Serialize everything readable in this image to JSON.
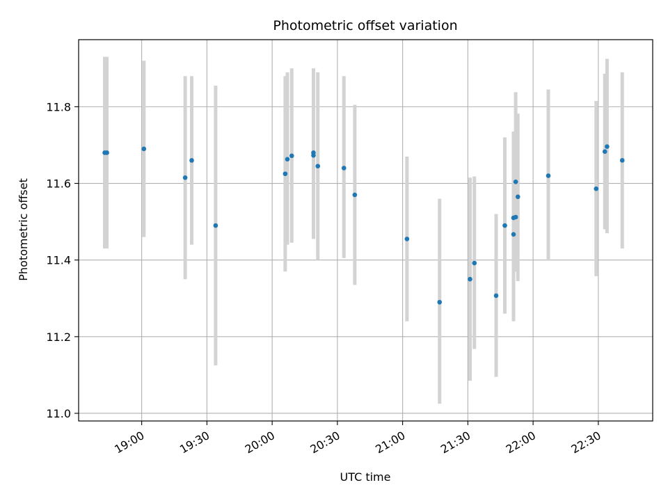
{
  "chart_data": {
    "type": "scatter",
    "title": "Photometric offset variation",
    "xlabel": "UTC time",
    "ylabel": "Photometric offset",
    "x_unit": "UTC time (HH:MM)",
    "xlim": [
      "18:31",
      "22:55"
    ],
    "ylim": [
      10.98,
      11.975
    ],
    "x_ticks": [
      "19:00",
      "19:30",
      "20:00",
      "20:30",
      "21:00",
      "21:30",
      "22:00",
      "22:30"
    ],
    "y_ticks": [
      11.0,
      11.2,
      11.4,
      11.6,
      11.8
    ],
    "y_tick_labels": [
      "11.0",
      "11.2",
      "11.4",
      "11.6",
      "11.8"
    ],
    "grid": true,
    "point_color": "#1f77b4",
    "errorbar_color": "#d3d3d3",
    "points": [
      {
        "x": "18:43",
        "y": 11.68,
        "yerr_low": 11.43,
        "yerr_high": 11.93
      },
      {
        "x": "18:44",
        "y": 11.68,
        "yerr_low": 11.43,
        "yerr_high": 11.93
      },
      {
        "x": "19:01",
        "y": 11.69,
        "yerr_low": 11.46,
        "yerr_high": 11.92
      },
      {
        "x": "19:20",
        "y": 11.615,
        "yerr_low": 11.35,
        "yerr_high": 11.88
      },
      {
        "x": "19:23",
        "y": 11.66,
        "yerr_low": 11.44,
        "yerr_high": 11.88
      },
      {
        "x": "19:34",
        "y": 11.49,
        "yerr_low": 11.125,
        "yerr_high": 11.855
      },
      {
        "x": "20:06",
        "y": 11.625,
        "yerr_low": 11.37,
        "yerr_high": 11.88
      },
      {
        "x": "20:07",
        "y": 11.663,
        "yerr_low": 11.44,
        "yerr_high": 11.89
      },
      {
        "x": "20:09",
        "y": 11.672,
        "yerr_low": 11.445,
        "yerr_high": 11.9
      },
      {
        "x": "20:19",
        "y": 11.673,
        "yerr_low": 11.455,
        "yerr_high": 11.89
      },
      {
        "x": "20:19",
        "y": 11.68,
        "yerr_low": 11.46,
        "yerr_high": 11.9
      },
      {
        "x": "20:21",
        "y": 11.645,
        "yerr_low": 11.4,
        "yerr_high": 11.89
      },
      {
        "x": "20:33",
        "y": 11.64,
        "yerr_low": 11.405,
        "yerr_high": 11.88
      },
      {
        "x": "20:38",
        "y": 11.57,
        "yerr_low": 11.335,
        "yerr_high": 11.805
      },
      {
        "x": "21:02",
        "y": 11.455,
        "yerr_low": 11.24,
        "yerr_high": 11.67
      },
      {
        "x": "21:17",
        "y": 11.29,
        "yerr_low": 11.025,
        "yerr_high": 11.56
      },
      {
        "x": "21:31",
        "y": 11.35,
        "yerr_low": 11.085,
        "yerr_high": 11.615
      },
      {
        "x": "21:33",
        "y": 11.392,
        "yerr_low": 11.168,
        "yerr_high": 11.618
      },
      {
        "x": "21:43",
        "y": 11.307,
        "yerr_low": 11.095,
        "yerr_high": 11.52
      },
      {
        "x": "21:47",
        "y": 11.49,
        "yerr_low": 11.26,
        "yerr_high": 11.72
      },
      {
        "x": "21:51",
        "y": 11.467,
        "yerr_low": 11.24,
        "yerr_high": 11.735
      },
      {
        "x": "21:51",
        "y": 11.51,
        "yerr_low": 11.29,
        "yerr_high": 11.735
      },
      {
        "x": "21:52",
        "y": 11.512,
        "yerr_low": 11.37,
        "yerr_high": 11.738
      },
      {
        "x": "21:52",
        "y": 11.604,
        "yerr_low": 11.37,
        "yerr_high": 11.838
      },
      {
        "x": "21:53",
        "y": 11.565,
        "yerr_low": 11.345,
        "yerr_high": 11.782
      },
      {
        "x": "22:07",
        "y": 11.62,
        "yerr_low": 11.398,
        "yerr_high": 11.845
      },
      {
        "x": "22:29",
        "y": 11.586,
        "yerr_low": 11.358,
        "yerr_high": 11.815
      },
      {
        "x": "22:33",
        "y": 11.683,
        "yerr_low": 11.48,
        "yerr_high": 11.886
      },
      {
        "x": "22:34",
        "y": 11.696,
        "yerr_low": 11.47,
        "yerr_high": 11.925
      },
      {
        "x": "22:41",
        "y": 11.66,
        "yerr_low": 11.43,
        "yerr_high": 11.89
      }
    ]
  }
}
